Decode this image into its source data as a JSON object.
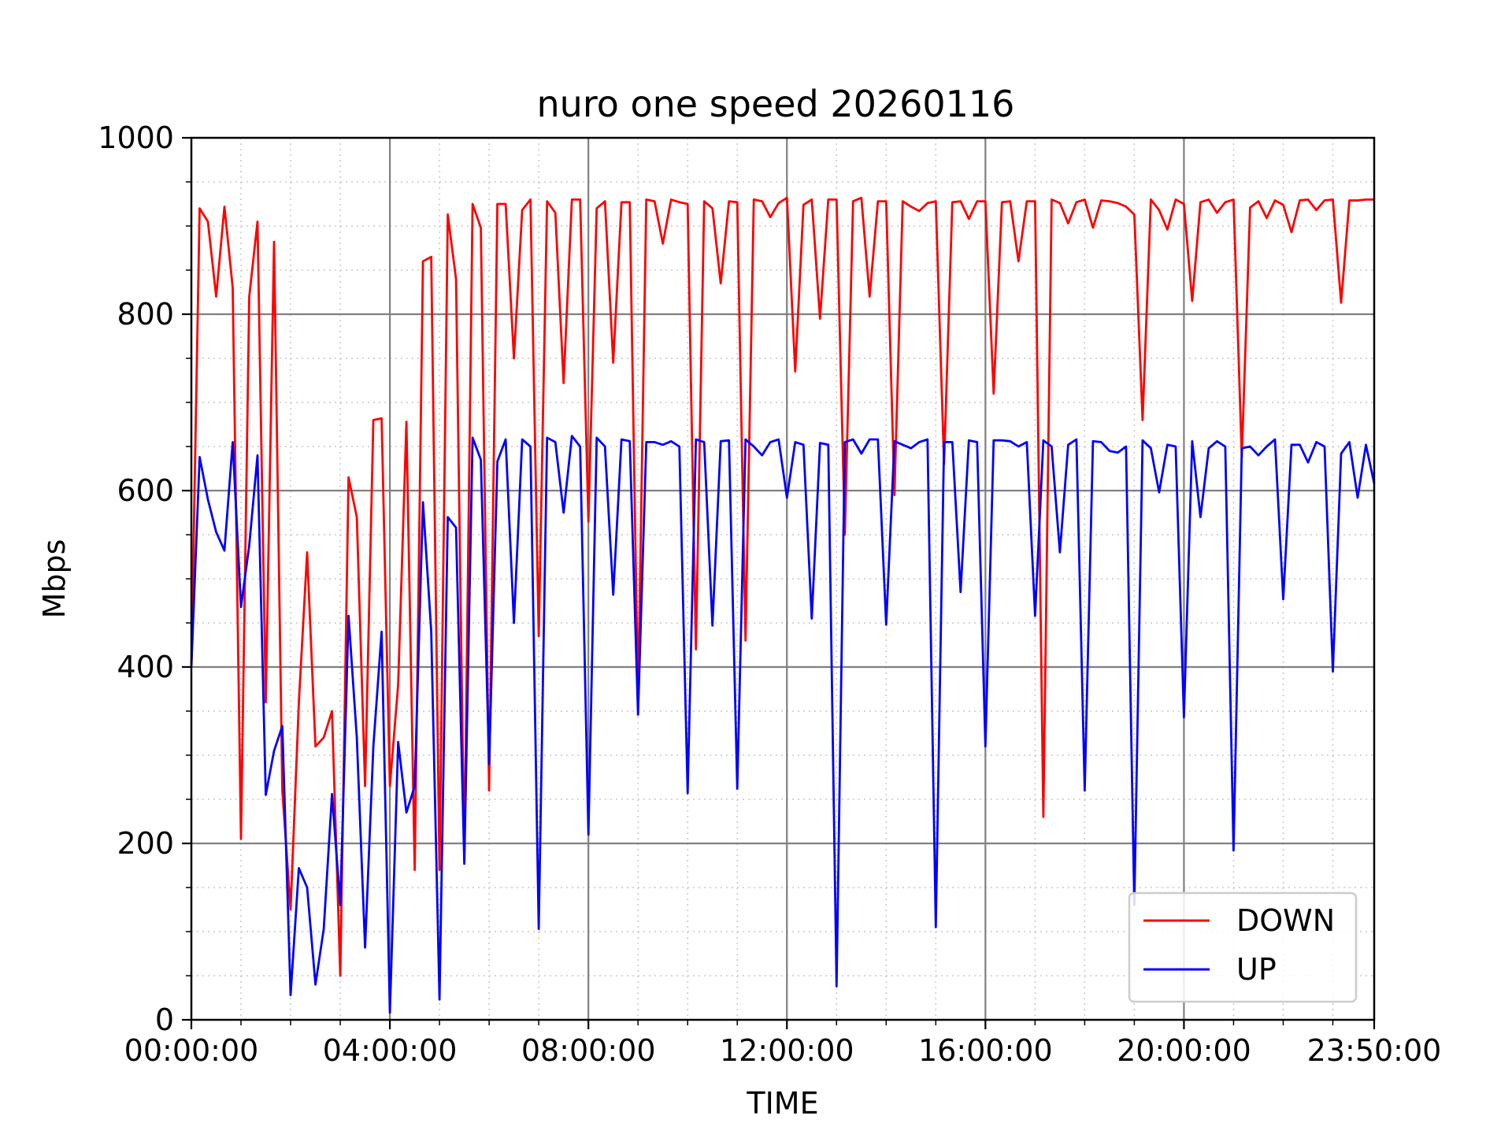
{
  "chart_data": {
    "type": "line",
    "title": "nuro one speed 20260116",
    "xlabel": "TIME",
    "ylabel": "Mbps",
    "x_unit": "minutes",
    "xlim": [
      0,
      1430
    ],
    "ylim": [
      0,
      1000
    ],
    "x_ticks": [
      {
        "value": 0,
        "label": "00:00:00"
      },
      {
        "value": 240,
        "label": "04:00:00"
      },
      {
        "value": 480,
        "label": "08:00:00"
      },
      {
        "value": 720,
        "label": "12:00:00"
      },
      {
        "value": 960,
        "label": "16:00:00"
      },
      {
        "value": 1200,
        "label": "20:00:00"
      },
      {
        "value": 1430,
        "label": "23:50:00"
      }
    ],
    "y_ticks": [
      0,
      200,
      400,
      600,
      800,
      1000
    ],
    "grid": {
      "major": true,
      "minor": true
    },
    "legend_position": "lower-right",
    "series": [
      {
        "name": "DOWN",
        "color": "#ff0000",
        "x": [
          0,
          10,
          20,
          30,
          40,
          50,
          60,
          70,
          80,
          90,
          100,
          110,
          120,
          130,
          140,
          150,
          160,
          170,
          180,
          190,
          200,
          210,
          220,
          230,
          240,
          250,
          260,
          270,
          280,
          290,
          300,
          310,
          320,
          330,
          340,
          350,
          360,
          370,
          380,
          390,
          400,
          410,
          420,
          430,
          440,
          450,
          460,
          470,
          480,
          490,
          500,
          510,
          520,
          530,
          540,
          550,
          560,
          570,
          580,
          590,
          600,
          610,
          620,
          630,
          640,
          650,
          660,
          670,
          680,
          690,
          700,
          710,
          720,
          730,
          740,
          750,
          760,
          770,
          780,
          790,
          800,
          810,
          820,
          830,
          840,
          850,
          860,
          870,
          880,
          890,
          900,
          910,
          920,
          930,
          940,
          950,
          960,
          970,
          980,
          990,
          1000,
          1010,
          1020,
          1030,
          1040,
          1050,
          1060,
          1070,
          1080,
          1090,
          1100,
          1110,
          1120,
          1130,
          1140,
          1150,
          1160,
          1170,
          1180,
          1190,
          1200,
          1210,
          1220,
          1230,
          1240,
          1250,
          1260,
          1270,
          1280,
          1290,
          1300,
          1310,
          1320,
          1330,
          1340,
          1350,
          1360,
          1370,
          1380,
          1390,
          1400,
          1410,
          1420,
          1430
        ],
        "values": [
          400,
          920,
          905,
          820,
          922,
          830,
          205,
          820,
          905,
          360,
          882,
          260,
          125,
          360,
          530,
          310,
          320,
          350,
          50,
          615,
          570,
          265,
          680,
          682,
          265,
          380,
          678,
          170,
          860,
          865,
          170,
          913,
          840,
          180,
          925,
          898,
          260,
          925,
          925,
          750,
          918,
          930,
          435,
          928,
          915,
          722,
          930,
          930,
          565,
          920,
          928,
          745,
          927,
          927,
          360,
          930,
          928,
          880,
          930,
          927,
          925,
          420,
          928,
          920,
          835,
          928,
          927,
          430,
          930,
          928,
          910,
          926,
          932,
          735,
          924,
          930,
          795,
          930,
          930,
          550,
          928,
          932,
          820,
          928,
          928,
          595,
          928,
          922,
          917,
          926,
          928,
          630,
          927,
          928,
          908,
          928,
          928,
          710,
          927,
          928,
          860,
          928,
          928,
          230,
          930,
          926,
          903,
          927,
          930,
          898,
          929,
          928,
          926,
          922,
          913,
          680,
          930,
          918,
          896,
          930,
          925,
          815,
          927,
          930,
          915,
          927,
          930,
          638,
          921,
          928,
          909,
          929,
          924,
          893,
          929,
          930,
          918,
          929,
          930,
          813,
          929,
          929,
          930,
          930
        ]
      },
      {
        "name": "UP",
        "color": "#0000ff",
        "x": [
          0,
          10,
          20,
          30,
          40,
          50,
          60,
          70,
          80,
          90,
          100,
          110,
          120,
          130,
          140,
          150,
          160,
          170,
          180,
          190,
          200,
          210,
          220,
          230,
          240,
          250,
          260,
          270,
          280,
          290,
          300,
          310,
          320,
          330,
          340,
          350,
          360,
          370,
          380,
          390,
          400,
          410,
          420,
          430,
          440,
          450,
          460,
          470,
          480,
          490,
          500,
          510,
          520,
          530,
          540,
          550,
          560,
          570,
          580,
          590,
          600,
          610,
          620,
          630,
          640,
          650,
          660,
          670,
          680,
          690,
          700,
          710,
          720,
          730,
          740,
          750,
          760,
          770,
          780,
          790,
          800,
          810,
          820,
          830,
          840,
          850,
          860,
          870,
          880,
          890,
          900,
          910,
          920,
          930,
          940,
          950,
          960,
          970,
          980,
          990,
          1000,
          1010,
          1020,
          1030,
          1040,
          1050,
          1060,
          1070,
          1080,
          1090,
          1100,
          1110,
          1120,
          1130,
          1140,
          1150,
          1160,
          1170,
          1180,
          1190,
          1200,
          1210,
          1220,
          1230,
          1240,
          1250,
          1260,
          1270,
          1280,
          1290,
          1300,
          1310,
          1320,
          1330,
          1340,
          1350,
          1360,
          1370,
          1380,
          1390,
          1400,
          1410,
          1420,
          1430
        ],
        "values": [
          400,
          638,
          590,
          553,
          532,
          655,
          468,
          538,
          640,
          255,
          305,
          333,
          28,
          172,
          150,
          40,
          103,
          256,
          130,
          458,
          320,
          82,
          310,
          440,
          8,
          315,
          235,
          265,
          587,
          440,
          23,
          570,
          558,
          177,
          660,
          635,
          290,
          633,
          658,
          450,
          658,
          650,
          103,
          660,
          655,
          575,
          662,
          650,
          210,
          660,
          650,
          482,
          658,
          656,
          346,
          655,
          655,
          652,
          656,
          650,
          257,
          658,
          655,
          447,
          656,
          657,
          262,
          658,
          650,
          640,
          655,
          658,
          592,
          655,
          652,
          455,
          654,
          652,
          38,
          655,
          658,
          642,
          658,
          658,
          448,
          656,
          652,
          648,
          655,
          658,
          105,
          655,
          655,
          485,
          657,
          655,
          310,
          657,
          657,
          656,
          650,
          655,
          458,
          657,
          650,
          530,
          652,
          658,
          260,
          656,
          655,
          645,
          643,
          650,
          130,
          657,
          648,
          598,
          652,
          650,
          343,
          656,
          570,
          648,
          656,
          650,
          192,
          648,
          650,
          640,
          650,
          658,
          477,
          652,
          652,
          632,
          655,
          650,
          395,
          642,
          655,
          592,
          652,
          608
        ]
      }
    ]
  }
}
